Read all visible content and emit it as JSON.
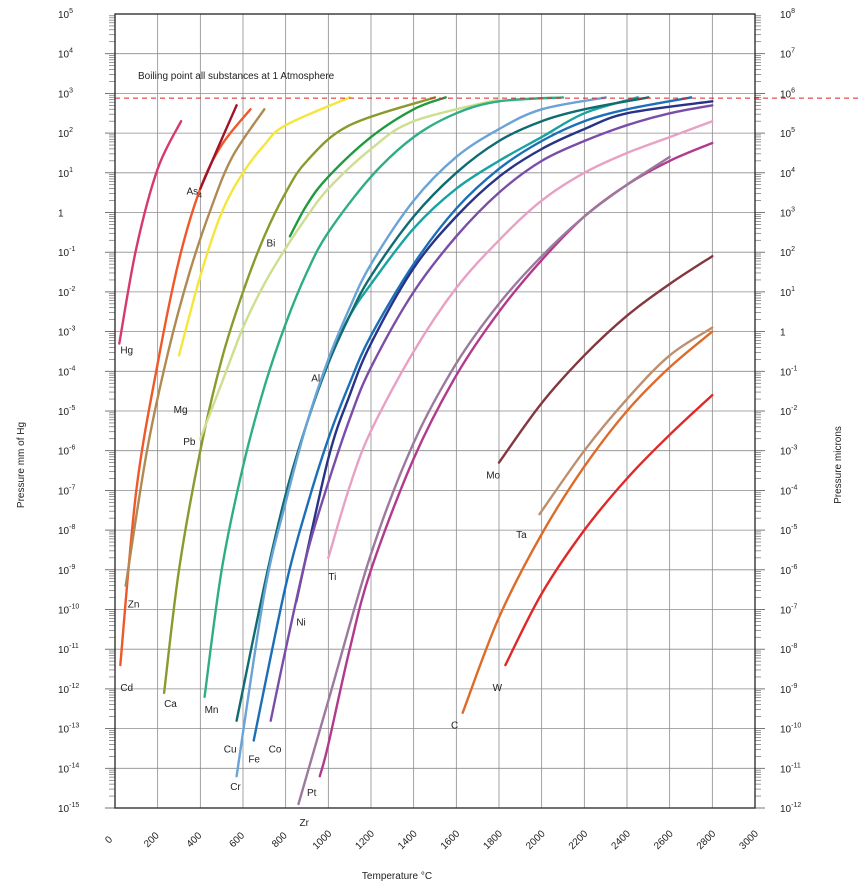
{
  "chart_data": {
    "type": "line",
    "xlabel": "Temperature °C",
    "ylabel_left": "Pressure mm of Hg",
    "ylabel_right": "Pressure microns",
    "annotation": "Boiling point all substances at 1 Atmosphere",
    "boiling_line_y": 760,
    "xlim": [
      0,
      3000
    ],
    "ylim": [
      -15,
      5
    ],
    "y_scale": "log",
    "grid": true,
    "x_ticks": [
      "0",
      "200",
      "400",
      "600",
      "800",
      "1000",
      "1200",
      "1400",
      "1600",
      "1800",
      "2000",
      "2200",
      "2400",
      "2600",
      "2800",
      "3000"
    ],
    "y_ticks_left": [
      {
        "base": "10",
        "exp": "5"
      },
      {
        "base": "10",
        "exp": "4"
      },
      {
        "base": "10",
        "exp": "3"
      },
      {
        "base": "10",
        "exp": "2"
      },
      {
        "base": "10",
        "exp": "1"
      },
      {
        "base": "1",
        "exp": ""
      },
      {
        "base": "10",
        "exp": "-1"
      },
      {
        "base": "10",
        "exp": "-2"
      },
      {
        "base": "10",
        "exp": "-3"
      },
      {
        "base": "10",
        "exp": "-4"
      },
      {
        "base": "10",
        "exp": "-5"
      },
      {
        "base": "10",
        "exp": "-6"
      },
      {
        "base": "10",
        "exp": "-7"
      },
      {
        "base": "10",
        "exp": "-8"
      },
      {
        "base": "10",
        "exp": "-9"
      },
      {
        "base": "10",
        "exp": "-10"
      },
      {
        "base": "10",
        "exp": "-11"
      },
      {
        "base": "10",
        "exp": "-12"
      },
      {
        "base": "10",
        "exp": "-13"
      },
      {
        "base": "10",
        "exp": "-14"
      },
      {
        "base": "10",
        "exp": "-15"
      }
    ],
    "y_ticks_right": [
      {
        "base": "10",
        "exp": "8"
      },
      {
        "base": "10",
        "exp": "7"
      },
      {
        "base": "10",
        "exp": "6"
      },
      {
        "base": "10",
        "exp": "5"
      },
      {
        "base": "10",
        "exp": "4"
      },
      {
        "base": "10",
        "exp": "3"
      },
      {
        "base": "10",
        "exp": "2"
      },
      {
        "base": "10",
        "exp": "1"
      },
      {
        "base": "1",
        "exp": ""
      },
      {
        "base": "10",
        "exp": "-1"
      },
      {
        "base": "10",
        "exp": "-2"
      },
      {
        "base": "10",
        "exp": "-3"
      },
      {
        "base": "10",
        "exp": "-4"
      },
      {
        "base": "10",
        "exp": "-5"
      },
      {
        "base": "10",
        "exp": "-6"
      },
      {
        "base": "10",
        "exp": "-7"
      },
      {
        "base": "10",
        "exp": "-8"
      },
      {
        "base": "10",
        "exp": "-9"
      },
      {
        "base": "10",
        "exp": "-10"
      },
      {
        "base": "10",
        "exp": "-11"
      },
      {
        "base": "10",
        "exp": "-12"
      }
    ],
    "series": [
      {
        "name": "Hg",
        "color": "#d63a6a",
        "points": [
          [
            20,
            -3.3
          ],
          [
            100,
            -0.9
          ],
          [
            200,
            1.1
          ],
          [
            310,
            2.3
          ]
        ]
      },
      {
        "name": "Cd",
        "color": "#f0582a",
        "points": [
          [
            25,
            -11.4
          ],
          [
            100,
            -7.0
          ],
          [
            200,
            -3.8
          ],
          [
            300,
            -1.2
          ],
          [
            400,
            0.6
          ],
          [
            500,
            1.7
          ],
          [
            635,
            2.6
          ]
        ]
      },
      {
        "name": "Zn",
        "color": "#b08a52",
        "points": [
          [
            50,
            -9.4
          ],
          [
            150,
            -6.0
          ],
          [
            250,
            -3.5
          ],
          [
            350,
            -1.5
          ],
          [
            450,
            0.1
          ],
          [
            550,
            1.4
          ],
          [
            700,
            2.6
          ]
        ]
      },
      {
        "name": "As",
        "sub": "4",
        "color": "#a0142a",
        "points": [
          [
            400,
            0.6
          ],
          [
            480,
            1.6
          ],
          [
            570,
            2.7
          ]
        ]
      },
      {
        "name": "Mg",
        "color": "#f5e63c",
        "points": [
          [
            300,
            -3.6
          ],
          [
            400,
            -1.6
          ],
          [
            500,
            0.0
          ],
          [
            600,
            1.0
          ],
          [
            700,
            1.7
          ],
          [
            800,
            2.2
          ],
          [
            1100,
            2.9
          ]
        ]
      },
      {
        "name": "Ca",
        "color": "#8b9a2c",
        "points": [
          [
            230,
            -12.1
          ],
          [
            300,
            -9.0
          ],
          [
            400,
            -6.0
          ],
          [
            500,
            -3.7
          ],
          [
            600,
            -2.0
          ],
          [
            700,
            -0.6
          ],
          [
            800,
            0.5
          ],
          [
            900,
            1.3
          ],
          [
            1100,
            2.2
          ],
          [
            1500,
            2.9
          ]
        ]
      },
      {
        "name": "Pb",
        "color": "#cddf90",
        "points": [
          [
            400,
            -5.7
          ],
          [
            500,
            -4.3
          ],
          [
            600,
            -2.9
          ],
          [
            700,
            -1.8
          ],
          [
            800,
            -0.9
          ],
          [
            900,
            -0.1
          ],
          [
            1000,
            0.6
          ],
          [
            1200,
            1.6
          ],
          [
            1400,
            2.3
          ],
          [
            1800,
            2.85
          ]
        ]
      },
      {
        "name": "Bi",
        "color": "#1f9a3f",
        "points": [
          [
            820,
            -0.6
          ],
          [
            900,
            0.2
          ],
          [
            1000,
            0.9
          ],
          [
            1200,
            1.9
          ],
          [
            1400,
            2.6
          ],
          [
            1550,
            2.9
          ]
        ]
      },
      {
        "name": "Mn",
        "color": "#2fae86",
        "points": [
          [
            420,
            -12.2
          ],
          [
            500,
            -9.0
          ],
          [
            600,
            -6.4
          ],
          [
            700,
            -4.4
          ],
          [
            800,
            -2.8
          ],
          [
            900,
            -1.5
          ],
          [
            1000,
            -0.5
          ],
          [
            1200,
            0.9
          ],
          [
            1400,
            1.9
          ],
          [
            1600,
            2.5
          ],
          [
            1800,
            2.8
          ],
          [
            2100,
            2.9
          ]
        ]
      },
      {
        "name": "Al",
        "color": "#18a3a0",
        "points": [
          [
            1000,
            -3.7
          ],
          [
            1100,
            -2.6
          ],
          [
            1200,
            -1.8
          ],
          [
            1400,
            -0.4
          ],
          [
            1600,
            0.6
          ],
          [
            1800,
            1.3
          ],
          [
            2000,
            1.9
          ],
          [
            2200,
            2.5
          ],
          [
            2450,
            2.9
          ]
        ]
      },
      {
        "name": "Cu",
        "color": "#0f6c72",
        "points": [
          [
            570,
            -12.8
          ],
          [
            700,
            -9.4
          ],
          [
            800,
            -7.1
          ],
          [
            900,
            -5.3
          ],
          [
            1000,
            -3.8
          ],
          [
            1100,
            -2.6
          ],
          [
            1200,
            -1.6
          ],
          [
            1400,
            -0.1
          ],
          [
            1600,
            1.0
          ],
          [
            1800,
            1.8
          ],
          [
            2000,
            2.3
          ],
          [
            2200,
            2.6
          ],
          [
            2500,
            2.9
          ]
        ]
      },
      {
        "name": "Cr",
        "color": "#6aa3d6",
        "points": [
          [
            570,
            -14.2
          ],
          [
            700,
            -9.6
          ],
          [
            800,
            -7.3
          ],
          [
            900,
            -5.3
          ],
          [
            1000,
            -3.7
          ],
          [
            1100,
            -2.4
          ],
          [
            1200,
            -1.3
          ],
          [
            1400,
            0.3
          ],
          [
            1600,
            1.4
          ],
          [
            1800,
            2.1
          ],
          [
            2000,
            2.6
          ],
          [
            2300,
            2.9
          ]
        ]
      },
      {
        "name": "Fe",
        "color": "#1b6fb8",
        "points": [
          [
            650,
            -13.3
          ],
          [
            800,
            -9.4
          ],
          [
            900,
            -7.4
          ],
          [
            1000,
            -5.7
          ],
          [
            1100,
            -4.3
          ],
          [
            1200,
            -3.1
          ],
          [
            1400,
            -1.3
          ],
          [
            1600,
            0.1
          ],
          [
            1800,
            1.1
          ],
          [
            2000,
            1.8
          ],
          [
            2200,
            2.3
          ],
          [
            2400,
            2.6
          ],
          [
            2700,
            2.9
          ]
        ]
      },
      {
        "name": "Ni",
        "color": "#283287",
        "points": [
          [
            850,
            -9.8
          ],
          [
            1000,
            -6.2
          ],
          [
            1100,
            -4.6
          ],
          [
            1200,
            -3.3
          ],
          [
            1400,
            -1.4
          ],
          [
            1600,
            -0.1
          ],
          [
            1800,
            0.9
          ],
          [
            2000,
            1.6
          ],
          [
            2200,
            2.1
          ],
          [
            2400,
            2.5
          ],
          [
            2800,
            2.8
          ]
        ]
      },
      {
        "name": "Co",
        "color": "#7a4ea8",
        "points": [
          [
            730,
            -12.8
          ],
          [
            800,
            -11.0
          ],
          [
            900,
            -8.6
          ],
          [
            1000,
            -6.8
          ],
          [
            1100,
            -5.2
          ],
          [
            1200,
            -3.9
          ],
          [
            1400,
            -2.0
          ],
          [
            1600,
            -0.6
          ],
          [
            1800,
            0.5
          ],
          [
            2000,
            1.3
          ],
          [
            2200,
            1.8
          ],
          [
            2400,
            2.2
          ],
          [
            2600,
            2.5
          ],
          [
            2800,
            2.7
          ]
        ]
      },
      {
        "name": "Ti",
        "color": "#e8a1c4",
        "points": [
          [
            1000,
            -8.7
          ],
          [
            1100,
            -6.9
          ],
          [
            1200,
            -5.5
          ],
          [
            1400,
            -3.5
          ],
          [
            1600,
            -1.9
          ],
          [
            1800,
            -0.7
          ],
          [
            2000,
            0.3
          ],
          [
            2200,
            1.0
          ],
          [
            2400,
            1.5
          ],
          [
            2600,
            1.9
          ],
          [
            2800,
            2.3
          ]
        ]
      },
      {
        "name": "Pt",
        "color": "#b23a8c",
        "points": [
          [
            960,
            -14.2
          ],
          [
            1000,
            -13.4
          ],
          [
            1100,
            -11.0
          ],
          [
            1200,
            -9.0
          ],
          [
            1400,
            -6.2
          ],
          [
            1600,
            -4.1
          ],
          [
            1800,
            -2.5
          ],
          [
            2000,
            -1.2
          ],
          [
            2200,
            -0.1
          ],
          [
            2400,
            0.7
          ],
          [
            2600,
            1.3
          ],
          [
            2800,
            1.75
          ]
        ]
      },
      {
        "name": "Zr",
        "color": "#9c7a9e",
        "points": [
          [
            860,
            -14.9
          ],
          [
            1000,
            -12.3
          ],
          [
            1200,
            -8.6
          ],
          [
            1400,
            -5.8
          ],
          [
            1600,
            -3.8
          ],
          [
            1800,
            -2.3
          ],
          [
            2000,
            -1.1
          ],
          [
            2200,
            -0.1
          ],
          [
            2400,
            0.7
          ],
          [
            2600,
            1.4
          ]
        ]
      },
      {
        "name": "Mo",
        "color": "#84373f",
        "points": [
          [
            1800,
            -6.3
          ],
          [
            2000,
            -4.8
          ],
          [
            2200,
            -3.6
          ],
          [
            2400,
            -2.6
          ],
          [
            2600,
            -1.8
          ],
          [
            2800,
            -1.1
          ]
        ]
      },
      {
        "name": "Ta",
        "color": "#be8f6e",
        "points": [
          [
            1990,
            -7.6
          ],
          [
            2200,
            -6.0
          ],
          [
            2400,
            -4.7
          ],
          [
            2600,
            -3.6
          ],
          [
            2800,
            -2.9
          ]
        ]
      },
      {
        "name": "C",
        "color": "#de6b28",
        "points": [
          [
            1630,
            -12.6
          ],
          [
            1800,
            -10.2
          ],
          [
            2000,
            -8.1
          ],
          [
            2200,
            -6.4
          ],
          [
            2400,
            -5.0
          ],
          [
            2600,
            -3.9
          ],
          [
            2800,
            -3.0
          ]
        ]
      },
      {
        "name": "W",
        "color": "#e02828",
        "points": [
          [
            1830,
            -11.4
          ],
          [
            2000,
            -9.6
          ],
          [
            2200,
            -8.0
          ],
          [
            2400,
            -6.7
          ],
          [
            2600,
            -5.6
          ],
          [
            2800,
            -4.6
          ]
        ]
      }
    ],
    "labels": [
      {
        "series": "Hg",
        "x": 25,
        "y": -3.45
      },
      {
        "series": "Cd",
        "x": 25,
        "y": -11.95
      },
      {
        "series": "Zn",
        "x": 60,
        "y": -9.85
      },
      {
        "series": "As",
        "sub": "4",
        "x": 335,
        "y": 0.55
      },
      {
        "series": "Mg",
        "x": 275,
        "y": -4.95
      },
      {
        "series": "Ca",
        "x": 230,
        "y": -12.35
      },
      {
        "series": "Pb",
        "x": 320,
        "y": -5.75
      },
      {
        "series": "Bi",
        "x": 710,
        "y": -0.75
      },
      {
        "series": "Mn",
        "x": 420,
        "y": -12.5
      },
      {
        "series": "Al",
        "x": 920,
        "y": -4.15
      },
      {
        "series": "Cu",
        "x": 510,
        "y": -13.5
      },
      {
        "series": "Cr",
        "x": 540,
        "y": -14.45
      },
      {
        "series": "Fe",
        "x": 625,
        "y": -13.75
      },
      {
        "series": "Ni",
        "x": 850,
        "y": -10.3
      },
      {
        "series": "Co",
        "x": 720,
        "y": -13.5
      },
      {
        "series": "Ti",
        "x": 1000,
        "y": -9.15
      },
      {
        "series": "Pt",
        "x": 900,
        "y": -14.6
      },
      {
        "series": "Zr",
        "x": 865,
        "y": -15.35
      },
      {
        "series": "Mo",
        "x": 1740,
        "y": -6.6
      },
      {
        "series": "Ta",
        "x": 1880,
        "y": -8.1
      },
      {
        "series": "C",
        "x": 1575,
        "y": -12.9
      },
      {
        "series": "W",
        "x": 1770,
        "y": -11.95
      }
    ]
  }
}
